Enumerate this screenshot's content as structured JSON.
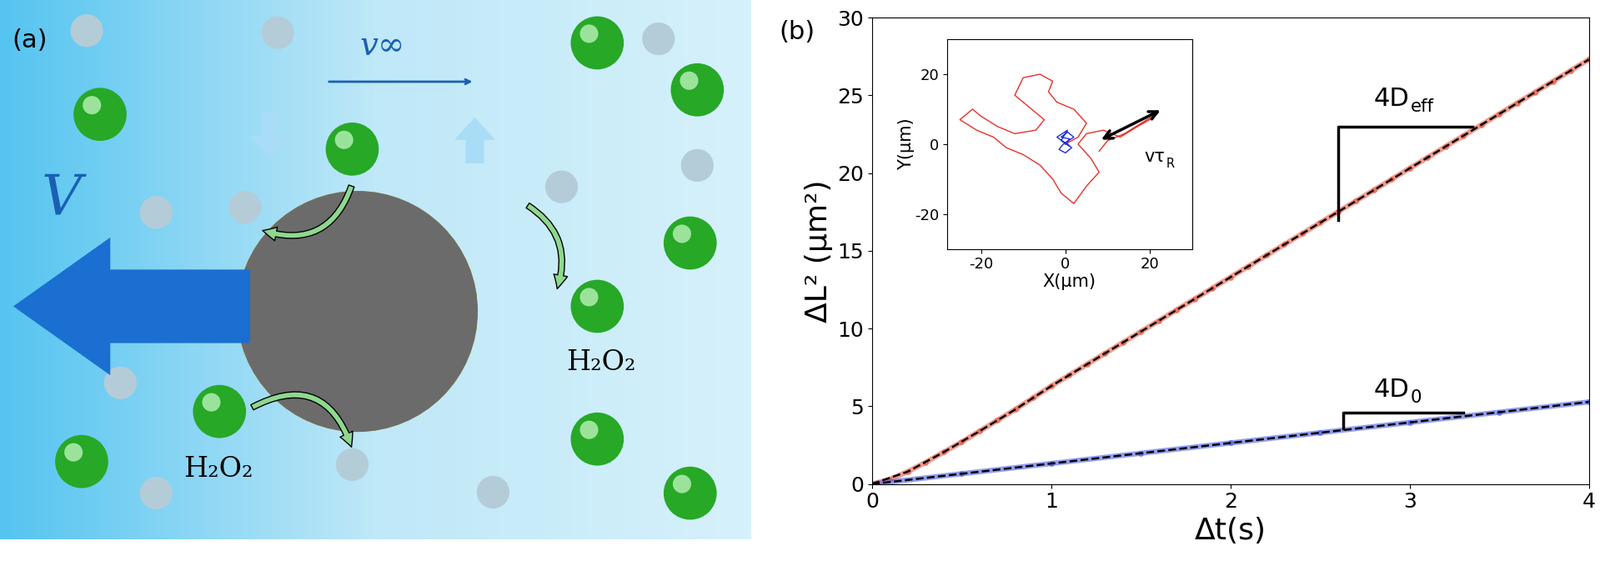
{
  "diagram": {
    "label": "(a)",
    "velocity": "V",
    "flow": "v∞",
    "species": [
      "H₂O₂",
      "H₂O₂"
    ]
  },
  "chart_data": [
    {
      "type": "line",
      "label": "(b)",
      "xlabel": "Δt(s)",
      "ylabel": "ΔL² (μm²)",
      "xlim": [
        0,
        4
      ],
      "ylim": [
        0,
        30
      ],
      "xticks": [
        0,
        1,
        2,
        3,
        4
      ],
      "yticks": [
        0,
        5,
        10,
        15,
        20,
        25,
        30
      ],
      "series": [
        {
          "color": "#ea5a45",
          "marker": "o",
          "line_style": "solid",
          "x": [
            0,
            0.1,
            0.2,
            0.3,
            0.4,
            0.5,
            0.6,
            0.7,
            0.8,
            0.9,
            1.0,
            1.1,
            1.2,
            1.3,
            1.4,
            1.5,
            1.6,
            1.7,
            1.8,
            1.9,
            2.0,
            2.1,
            2.2,
            2.3,
            2.4,
            2.5,
            2.6,
            2.7,
            2.8,
            2.9,
            3.0,
            3.1,
            3.2,
            3.3,
            3.4,
            3.5,
            3.6,
            3.7,
            3.8,
            3.9,
            4.0
          ],
          "values": [
            0,
            0.3,
            0.8,
            1.4,
            2.05,
            2.7,
            3.4,
            4.1,
            4.8,
            5.55,
            6.3,
            7.0,
            7.7,
            8.4,
            9.1,
            9.8,
            10.5,
            11.2,
            11.9,
            12.6,
            13.3,
            14.0,
            14.7,
            15.4,
            16.1,
            16.8,
            17.5,
            18.2,
            18.9,
            19.6,
            20.3,
            21.0,
            21.7,
            22.4,
            23.1,
            23.8,
            24.5,
            25.2,
            25.9,
            26.6,
            27.3
          ]
        },
        {
          "color": "#4a5ee6",
          "marker": "o",
          "line_style": "solid",
          "x": [
            0,
            0.5,
            1.0,
            1.5,
            2.0,
            2.5,
            3.0,
            3.5,
            4.0
          ],
          "values": [
            0,
            0.66,
            1.32,
            1.98,
            2.64,
            3.3,
            3.96,
            4.62,
            5.28
          ]
        },
        {
          "color": "#000000",
          "line_style": "dashed",
          "x": [
            0,
            0.2,
            0.4,
            0.6,
            0.8,
            1.0,
            2.0,
            3.0,
            4.0
          ],
          "values": [
            0,
            0.8,
            2.05,
            3.4,
            4.8,
            6.3,
            13.3,
            20.3,
            27.3
          ]
        },
        {
          "color": "#000000",
          "line_style": "dashed",
          "x": [
            0,
            4.0
          ],
          "values": [
            0,
            5.28
          ]
        }
      ],
      "annotations": [
        {
          "text": "4D",
          "subscript": "eff"
        },
        {
          "text": "4D",
          "subscript": "0"
        }
      ]
    },
    {
      "type": "line",
      "xlabel": "X(μm)",
      "ylabel": "Y(μm)",
      "xlim": [
        -28,
        30
      ],
      "ylim": [
        -30,
        30
      ],
      "xticks": [
        -20,
        0,
        20
      ],
      "yticks": [
        -20,
        0,
        20
      ],
      "series": [
        {
          "color": "#e8302a",
          "line_style": "solid",
          "x": [
            0,
            3,
            5,
            2,
            -2,
            -4,
            -3,
            -6,
            -10,
            -12,
            -8,
            -5,
            -7,
            -12,
            -16,
            -20,
            -22,
            -25,
            -21,
            -17,
            -14,
            -10,
            -6,
            -3,
            -1,
            2,
            5,
            8,
            6,
            3,
            5,
            9,
            13,
            17,
            20,
            22,
            18,
            14,
            10,
            8
          ],
          "values": [
            0,
            2,
            6,
            10,
            12,
            15,
            18,
            20,
            19,
            14,
            10,
            7,
            4,
            3,
            5,
            8,
            10,
            7,
            4,
            2,
            -1,
            -3,
            -6,
            -10,
            -14,
            -17,
            -12,
            -8,
            -4,
            0,
            3,
            4,
            2,
            5,
            7,
            9,
            6,
            3,
            1,
            -2
          ]
        },
        {
          "color": "#2030e0",
          "line_style": "solid",
          "x": [
            0,
            1,
            -1,
            0.5,
            2,
            -0.5,
            -1.5,
            0,
            1.5,
            -1,
            0.5,
            -2,
            1,
            0
          ],
          "values": [
            0,
            1.5,
            2,
            3.5,
            2,
            0,
            -1.5,
            -2.5,
            -1,
            1,
            4,
            2,
            -0.5,
            0.5
          ]
        }
      ],
      "annotations": [
        {
          "text": "vτ",
          "subscript": "R"
        }
      ]
    }
  ]
}
